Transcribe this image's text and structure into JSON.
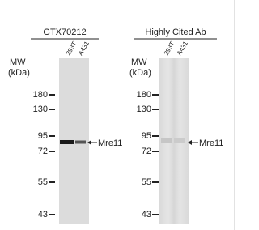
{
  "panels": [
    {
      "title": "GTX70212",
      "lanes": [
        "293T",
        "A431"
      ],
      "mw_label": "MW",
      "unit_label": "(kDa)",
      "markers": [
        "180",
        "130",
        "95",
        "72",
        "55",
        "43"
      ],
      "band_label": "Mre11"
    },
    {
      "title": "Highly Cited Ab",
      "lanes": [
        "293T",
        "A431"
      ],
      "mw_label": "MW",
      "unit_label": "(kDa)",
      "markers": [
        "180",
        "130",
        "95",
        "72",
        "55",
        "43"
      ],
      "band_label": "Mre11"
    }
  ]
}
